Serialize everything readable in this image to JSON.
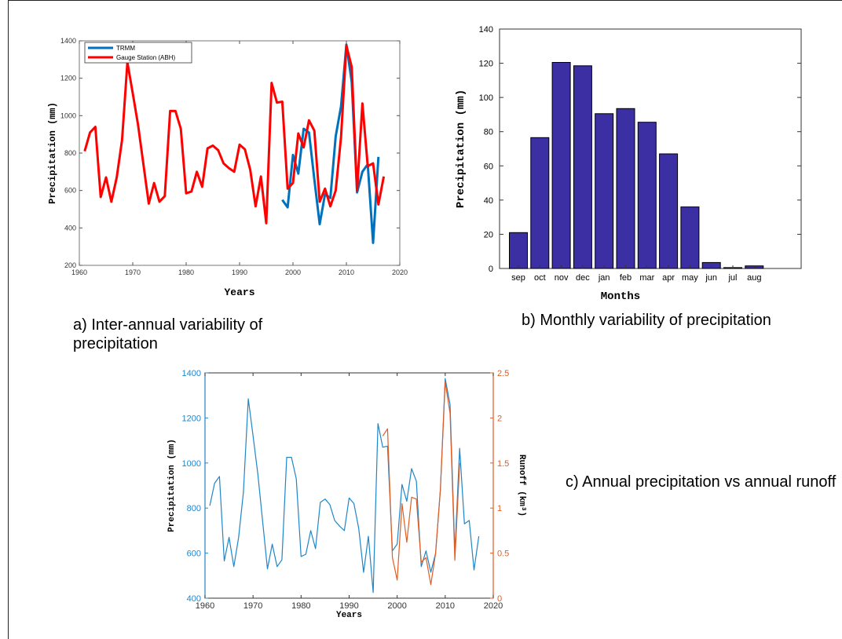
{
  "captions": {
    "a": "a) Inter-annual variability of precipitation",
    "b": "b) Monthly variability of precipitation",
    "c": "c) Annual precipitation vs annual runoff"
  },
  "chart_data": [
    {
      "id": "a",
      "type": "line",
      "xlabel": "Years",
      "ylabel": "Precipitation (mm)",
      "xlim": [
        1960,
        2020
      ],
      "ylim": [
        200,
        1400
      ],
      "xticks": [
        1960,
        1970,
        1980,
        1990,
        2000,
        2010,
        2020
      ],
      "yticks": [
        200,
        400,
        600,
        800,
        1000,
        1200,
        1400
      ],
      "legend_position": "top-left",
      "grid": false,
      "series": [
        {
          "name": "TRMM",
          "color": "#0072bd",
          "x": [
            1998,
            1999,
            2000,
            2001,
            2002,
            2003,
            2004,
            2005,
            2006,
            2007,
            2008,
            2009,
            2010,
            2011,
            2012,
            2013,
            2014,
            2015,
            2016
          ],
          "y": [
            550,
            510,
            790,
            690,
            930,
            910,
            660,
            420,
            580,
            560,
            890,
            1050,
            1380,
            1180,
            590,
            700,
            740,
            320,
            780
          ]
        },
        {
          "name": "Gauge Station (ABH)",
          "color": "#ff0000",
          "x": [
            1961,
            1962,
            1963,
            1964,
            1965,
            1966,
            1967,
            1968,
            1969,
            1970,
            1971,
            1972,
            1973,
            1974,
            1975,
            1976,
            1977,
            1978,
            1979,
            1980,
            1981,
            1982,
            1983,
            1984,
            1985,
            1986,
            1987,
            1988,
            1989,
            1990,
            1991,
            1992,
            1993,
            1994,
            1995,
            1996,
            1997,
            1998,
            1999,
            2000,
            2001,
            2002,
            2003,
            2004,
            2005,
            2006,
            2007,
            2008,
            2009,
            2010,
            2011,
            2012,
            2013,
            2014,
            2015,
            2016,
            2017
          ],
          "y": [
            810,
            910,
            940,
            565,
            670,
            540,
            670,
            870,
            1285,
            1120,
            950,
            740,
            530,
            640,
            540,
            570,
            1025,
            1025,
            930,
            585,
            595,
            700,
            620,
            825,
            840,
            815,
            745,
            720,
            700,
            845,
            820,
            710,
            515,
            675,
            425,
            1175,
            1070,
            1075,
            610,
            640,
            905,
            830,
            975,
            920,
            540,
            610,
            515,
            600,
            885,
            1375,
            1260,
            600,
            1065,
            730,
            745,
            525,
            675
          ]
        }
      ]
    },
    {
      "id": "b",
      "type": "bar",
      "xlabel": "Months",
      "ylabel": "Precipitation (mm)",
      "ylim": [
        0,
        140
      ],
      "yticks": [
        0,
        20,
        40,
        60,
        80,
        100,
        120,
        140
      ],
      "categories": [
        "sep",
        "oct",
        "nov",
        "dec",
        "jan",
        "feb",
        "mar",
        "apr",
        "may",
        "jun",
        "jul",
        "aug"
      ],
      "values": [
        21,
        76.5,
        120.5,
        118.5,
        90.5,
        93.5,
        85.5,
        67,
        36,
        3.5,
        0.5,
        1.5
      ],
      "bar_color": "#3b2fa3",
      "grid": false
    },
    {
      "id": "c",
      "type": "line",
      "xlabel": "Years",
      "ylabel_left": "Precipitation (mm)",
      "ylabel_right": "Runoff (km³)",
      "xlim": [
        1960,
        2020
      ],
      "xticks": [
        1960,
        1970,
        1980,
        1990,
        2000,
        2010,
        2020
      ],
      "ylim_left": [
        400,
        1400
      ],
      "yticks_left": [
        400,
        600,
        800,
        1000,
        1200,
        1400
      ],
      "ylim_right": [
        0,
        2.5
      ],
      "yticks_right": [
        0,
        0.5,
        1,
        1.5,
        2,
        2.5
      ],
      "grid": false,
      "series": [
        {
          "axis": "left",
          "color": "#1f86c8",
          "x": [
            1961,
            1962,
            1963,
            1964,
            1965,
            1966,
            1967,
            1968,
            1969,
            1970,
            1971,
            1972,
            1973,
            1974,
            1975,
            1976,
            1977,
            1978,
            1979,
            1980,
            1981,
            1982,
            1983,
            1984,
            1985,
            1986,
            1987,
            1988,
            1989,
            1990,
            1991,
            1992,
            1993,
            1994,
            1995,
            1996,
            1997,
            1998,
            1999,
            2000,
            2001,
            2002,
            2003,
            2004,
            2005,
            2006,
            2007,
            2008,
            2009,
            2010,
            2011,
            2012,
            2013,
            2014,
            2015,
            2016,
            2017
          ],
          "y": [
            810,
            910,
            940,
            565,
            670,
            540,
            670,
            870,
            1285,
            1120,
            950,
            740,
            530,
            640,
            540,
            570,
            1025,
            1025,
            930,
            585,
            595,
            700,
            620,
            825,
            840,
            815,
            745,
            720,
            700,
            845,
            820,
            710,
            515,
            675,
            425,
            1175,
            1070,
            1075,
            610,
            640,
            905,
            830,
            975,
            920,
            540,
            610,
            515,
            600,
            885,
            1375,
            1260,
            600,
            1065,
            730,
            745,
            525,
            675
          ]
        },
        {
          "axis": "right",
          "color": "#e05d24",
          "x": [
            1997,
            1998,
            1999,
            2000,
            2001,
            2002,
            2003,
            2004,
            2005,
            2006,
            2007,
            2008,
            2009,
            2010,
            2011,
            2012,
            2013
          ],
          "y": [
            1.8,
            1.88,
            0.45,
            0.2,
            1.05,
            0.62,
            1.12,
            1.1,
            0.4,
            0.45,
            0.15,
            0.5,
            1.2,
            2.4,
            2.05,
            0.42,
            1.5
          ]
        }
      ]
    }
  ]
}
